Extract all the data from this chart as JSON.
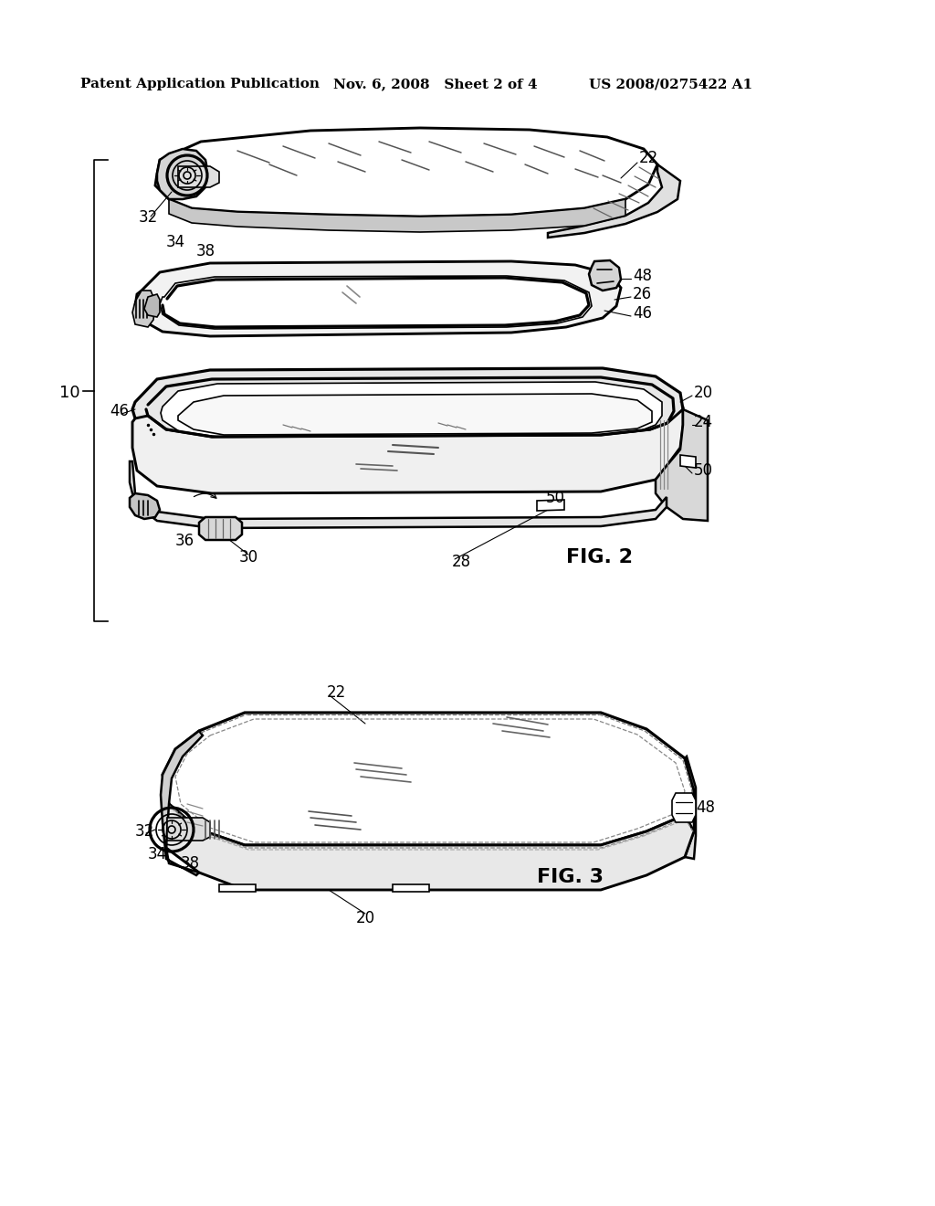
{
  "header_left": "Patent Application Publication",
  "header_mid": "Nov. 6, 2008   Sheet 2 of 4",
  "header_right": "US 2008/0275422 A1",
  "fig2_label": "FIG. 2",
  "fig3_label": "FIG. 3",
  "bg_color": "#ffffff",
  "lc": "#000000",
  "header_fontsize": 11,
  "label_fontsize": 12,
  "figlabel_fontsize": 16
}
